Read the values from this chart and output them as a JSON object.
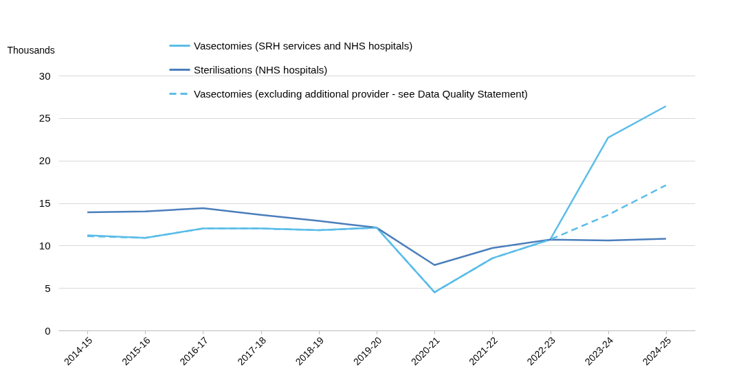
{
  "chart_data": {
    "type": "line",
    "ylabel": "Thousands",
    "categories": [
      "2014-15",
      "2015-16",
      "2016-17",
      "2017-18",
      "2018-19",
      "2019-20",
      "2020-21",
      "2021-22",
      "2022-23",
      "2023-24",
      "2024-25"
    ],
    "series": [
      {
        "name": "Vasectomies (SRH services and NHS hospitals)",
        "color": "#5bbde8",
        "line_style": "solid",
        "values": [
          11.2,
          10.9,
          12.0,
          12.0,
          11.8,
          12.1,
          4.5,
          8.5,
          10.7,
          22.7,
          26.4
        ]
      },
      {
        "name": "Sterilisations (NHS hospitals)",
        "color": "#4a7ebb",
        "line_style": "solid",
        "values": [
          13.9,
          14.0,
          14.4,
          13.6,
          12.9,
          12.1,
          7.7,
          9.7,
          10.7,
          10.6,
          10.8
        ]
      },
      {
        "name": "Vasectomies (excluding additional provider - see Data Quality Statement)",
        "color": "#5bbde8",
        "line_style": "dashed",
        "values": [
          11.1,
          10.9,
          12.0,
          12.0,
          11.8,
          12.1,
          4.5,
          8.5,
          10.7,
          13.6,
          17.1
        ]
      }
    ],
    "ylim": [
      0,
      30
    ],
    "yticks": [
      0,
      5,
      10,
      15,
      20,
      25,
      30
    ],
    "grid": "y",
    "legend": "top",
    "marker": "none"
  }
}
